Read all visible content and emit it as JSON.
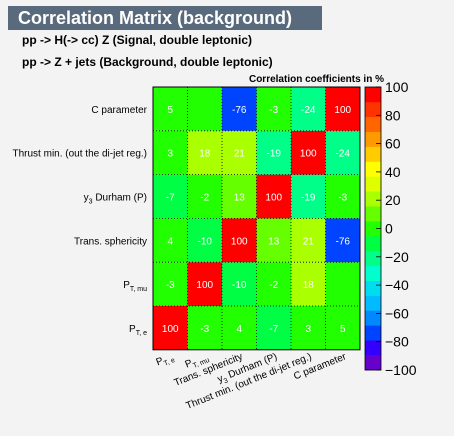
{
  "title": "Correlation Matrix (background)",
  "subtitles": [
    "pp -> H(-> cc) Z   (Signal, double leptonic)",
    "pp -> Z + jets   (Background, double leptonic)"
  ],
  "colors": {
    "title_bg": "#5a6a7d",
    "title_text": "#ffffff",
    "background": "#f3f3f3"
  },
  "chart_data": {
    "type": "heatmap",
    "title": "Correlation coefficients in %",
    "x_labels": [
      "P_{T, e}",
      "P_{T, mu}",
      "Trans. sphericity",
      "y_{3} Durham (P)",
      "Thrust min. (out the di-jet reg.)",
      "C parameter"
    ],
    "y_labels": [
      "P_{T, e}",
      "P_{T, mu}",
      "Trans. sphericity",
      "y_{3} Durham (P)",
      "Thrust min. (out the di-jet reg.)",
      "C parameter"
    ],
    "matrix": [
      [
        100,
        -3,
        4,
        -7,
        3,
        5
      ],
      [
        -3,
        100,
        -10,
        -2,
        18,
        0
      ],
      [
        4,
        -10,
        100,
        13,
        21,
        -76
      ],
      [
        -7,
        -2,
        13,
        100,
        -19,
        -3
      ],
      [
        3,
        18,
        21,
        -19,
        100,
        -24
      ],
      [
        5,
        0,
        -76,
        -3,
        -24,
        100
      ]
    ],
    "hide_zero_labels": true,
    "zlim": [
      -100,
      100
    ],
    "z_ticks": [
      100,
      80,
      60,
      40,
      20,
      0,
      -20,
      -40,
      -60,
      -80,
      -100
    ],
    "z_tick_labels": [
      "100",
      "80",
      "60",
      "40",
      "20",
      "0",
      "−20",
      "−40",
      "−60",
      "−80",
      "−100"
    ],
    "palette": [
      "#6600cc",
      "#3300ff",
      "#0044ff",
      "#0088ff",
      "#00bbff",
      "#00ddee",
      "#00ffcc",
      "#00ff88",
      "#00ff44",
      "#22ff00",
      "#66ff00",
      "#aaff00",
      "#ddff00",
      "#ffff00",
      "#ffcc00",
      "#ff9900",
      "#ff6600",
      "#ff3300",
      "#ff0000"
    ],
    "grid": true
  }
}
